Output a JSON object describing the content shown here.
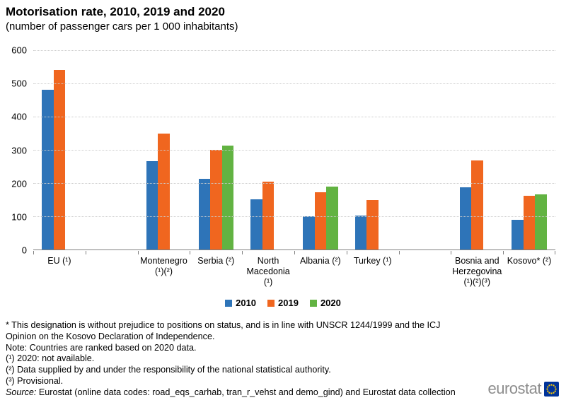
{
  "title": "Motorisation rate, 2010, 2019 and 2020",
  "subtitle": "(number of passenger cars per 1 000 inhabitants)",
  "chart_data": {
    "type": "bar",
    "title": "Motorisation rate, 2010, 2019 and 2020",
    "subtitle": "(number of passenger cars per 1 000 inhabitants)",
    "ylabel": "",
    "xlabel": "",
    "ylim": [
      0,
      600
    ],
    "yticks": [
      0,
      100,
      200,
      300,
      400,
      500,
      600
    ],
    "grid": "horizontal-dotted",
    "legend_position": "bottom-center",
    "categories": [
      "EU (¹)",
      "",
      "Montenegro (¹)(²)",
      "Serbia (²)",
      "North Macedonia (¹)",
      "Albania (²)",
      "Turkey (¹)",
      "",
      "Bosnia and Herzegovina (¹)(²)(³)",
      "Kosovo* (²)"
    ],
    "category_label_lines": [
      [
        "EU (¹)"
      ],
      [],
      [
        "Montenegro",
        "(¹)(²)"
      ],
      [
        "Serbia (²)"
      ],
      [
        "North",
        "Macedonia",
        "(¹)"
      ],
      [
        "Albania (²)"
      ],
      [
        "Turkey (¹)"
      ],
      [],
      [
        "Bosnia and",
        "Herzegovina",
        "(¹)(²)(³)"
      ],
      [
        "Kosovo* (²)"
      ]
    ],
    "series": [
      {
        "name": "2010",
        "color": "#2e74b8",
        "values": [
          480,
          null,
          265,
          213,
          151,
          100,
          102,
          null,
          187,
          89
        ]
      },
      {
        "name": "2019",
        "color": "#f0661f",
        "values": [
          541,
          null,
          350,
          299,
          204,
          172,
          150,
          null,
          268,
          161
        ]
      },
      {
        "name": "2020",
        "color": "#62b342",
        "values": [
          null,
          null,
          null,
          312,
          null,
          190,
          null,
          null,
          null,
          165
        ]
      }
    ]
  },
  "axis_colors": {
    "grid": "#cccccc",
    "axis": "#808080"
  },
  "footnotes": {
    "lines": [
      "* This designation is without prejudice to positions on status, and is in line with UNSCR 1244/1999 and the ICJ",
      "Opinion on the Kosovo Declaration of Independence.",
      "Note: Countries are ranked based on 2020 data.",
      "(¹) 2020: not available.",
      "(²) Data supplied by and under the responsibility of the national statistical authority.",
      "(³) Provisional."
    ]
  },
  "source": {
    "prefix": "Source:",
    "text": " Eurostat (online data codes: road_eqs_carhab, tran_r_vehst and demo_gind) and Eurostat data collection"
  },
  "logo": {
    "text": "eurostat",
    "flag_bg": "#003399",
    "flag_star": "#ffcc00"
  }
}
